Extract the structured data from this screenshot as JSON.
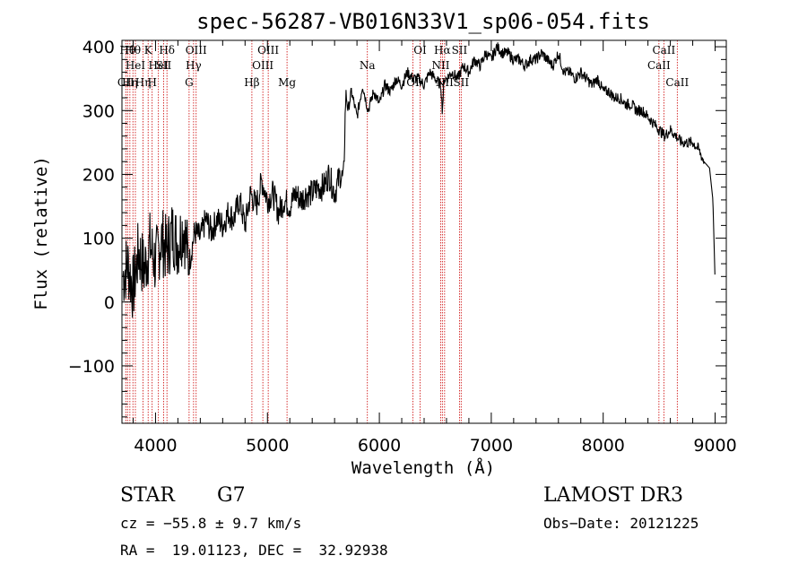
{
  "chart_data": {
    "type": "line",
    "title": "spec-56287-VB016N33V1_sp06-054.fits",
    "xlabel": "Wavelength (Å)",
    "ylabel": "Flux (relative)",
    "xlim": [
      3700,
      9100
    ],
    "ylim": [
      -190,
      410
    ],
    "xticks": [
      4000,
      5000,
      6000,
      7000,
      8000,
      9000
    ],
    "xtick_labels": [
      "4000",
      "5000",
      "6000",
      "7000",
      "8000",
      "9000"
    ],
    "yticks": [
      -100,
      0,
      100,
      200,
      300,
      400
    ],
    "ytick_labels": [
      "−100",
      "0",
      "100",
      "200",
      "300",
      "400"
    ],
    "series": [
      {
        "name": "flux",
        "x": [
          3710,
          3750,
          3800,
          3850,
          3900,
          3950,
          4000,
          4050,
          4100,
          4150,
          4200,
          4250,
          4300,
          4350,
          4400,
          4450,
          4500,
          4550,
          4600,
          4650,
          4700,
          4750,
          4800,
          4850,
          4900,
          4950,
          5000,
          5050,
          5100,
          5150,
          5200,
          5250,
          5300,
          5350,
          5400,
          5450,
          5500,
          5550,
          5600,
          5650,
          5680,
          5700,
          5720,
          5750,
          5800,
          5850,
          5900,
          5950,
          6000,
          6050,
          6100,
          6150,
          6200,
          6250,
          6300,
          6350,
          6400,
          6450,
          6500,
          6550,
          6563,
          6580,
          6600,
          6650,
          6700,
          6750,
          6800,
          6850,
          6900,
          6950,
          7000,
          7050,
          7100,
          7150,
          7200,
          7250,
          7300,
          7350,
          7400,
          7450,
          7500,
          7550,
          7600,
          7650,
          7700,
          7750,
          7800,
          7850,
          7900,
          7950,
          8000,
          8050,
          8100,
          8150,
          8200,
          8250,
          8300,
          8350,
          8400,
          8450,
          8500,
          8550,
          8600,
          8650,
          8700,
          8750,
          8800,
          8850,
          8900,
          8950,
          8980,
          9000
        ],
        "values": [
          40,
          60,
          20,
          80,
          50,
          90,
          60,
          100,
          80,
          110,
          90,
          120,
          60,
          110,
          100,
          130,
          110,
          130,
          120,
          140,
          130,
          160,
          120,
          170,
          150,
          190,
          160,
          170,
          140,
          160,
          150,
          170,
          160,
          170,
          170,
          180,
          180,
          200,
          170,
          200,
          190,
          330,
          300,
          330,
          290,
          340,
          300,
          330,
          310,
          340,
          330,
          350,
          340,
          360,
          350,
          350,
          340,
          360,
          350,
          340,
          300,
          350,
          350,
          360,
          350,
          370,
          360,
          380,
          370,
          390,
          380,
          400,
          390,
          390,
          380,
          380,
          370,
          380,
          380,
          390,
          380,
          370,
          390,
          360,
          360,
          350,
          360,
          350,
          340,
          350,
          330,
          330,
          320,
          320,
          310,
          310,
          300,
          300,
          290,
          280,
          270,
          260,
          270,
          260,
          250,
          250,
          250,
          240,
          220,
          210,
          160,
          30
        ]
      }
    ],
    "lines": [
      {
        "x": 3734,
        "label": "CII",
        "row": 3
      },
      {
        "x": 3750,
        "label": "Hθ",
        "row": 1
      },
      {
        "x": 3771,
        "label": "Hη",
        "row": 3
      },
      {
        "x": 3798,
        "label": "Hθ",
        "row": 1
      },
      {
        "x": 3820,
        "label": "HeI",
        "row": 2
      },
      {
        "x": 3889,
        "label": "Hη",
        "row": 3
      },
      {
        "x": 3934,
        "label": "K",
        "row": 1
      },
      {
        "x": 3970,
        "label": "H",
        "row": 3
      },
      {
        "x": 4026,
        "label": "HeI",
        "row": 2
      },
      {
        "x": 4072,
        "label": "SII",
        "row": 2
      },
      {
        "x": 4102,
        "label": "Hδ",
        "row": 1
      },
      {
        "x": 4300,
        "label": "G",
        "row": 3
      },
      {
        "x": 4340,
        "label": "Hγ",
        "row": 2
      },
      {
        "x": 4363,
        "label": "OIII",
        "row": 1
      },
      {
        "x": 4861,
        "label": "Hβ",
        "row": 3
      },
      {
        "x": 4959,
        "label": "OIII",
        "row": 2
      },
      {
        "x": 5007,
        "label": "OIII",
        "row": 1
      },
      {
        "x": 5175,
        "label": "Mg",
        "row": 3
      },
      {
        "x": 5893,
        "label": "Na",
        "row": 2
      },
      {
        "x": 6300,
        "label": "OI",
        "row": 3
      },
      {
        "x": 6364,
        "label": "OI",
        "row": 1
      },
      {
        "x": 6548,
        "label": "NII",
        "row": 2
      },
      {
        "x": 6563,
        "label": "Hα",
        "row": 1
      },
      {
        "x": 6583,
        "label": "NII",
        "row": 3
      },
      {
        "x": 6716,
        "label": "SII",
        "row": 1
      },
      {
        "x": 6731,
        "label": "SII",
        "row": 3
      },
      {
        "x": 8498,
        "label": "CaII",
        "row": 2
      },
      {
        "x": 8542,
        "label": "CaII",
        "row": 1
      },
      {
        "x": 8662,
        "label": "CaII",
        "row": 3
      }
    ]
  },
  "info": {
    "class": "STAR",
    "subclass": "G7",
    "survey": "LAMOST DR3",
    "cz": "cz = −55.8 ± 9.7 km/s",
    "obsdate": "Obs−Date: 20121225",
    "radec": "RA =  19.01123, DEC =  32.92938"
  },
  "colors": {
    "line": "#000000",
    "marker": "#cc0000"
  }
}
